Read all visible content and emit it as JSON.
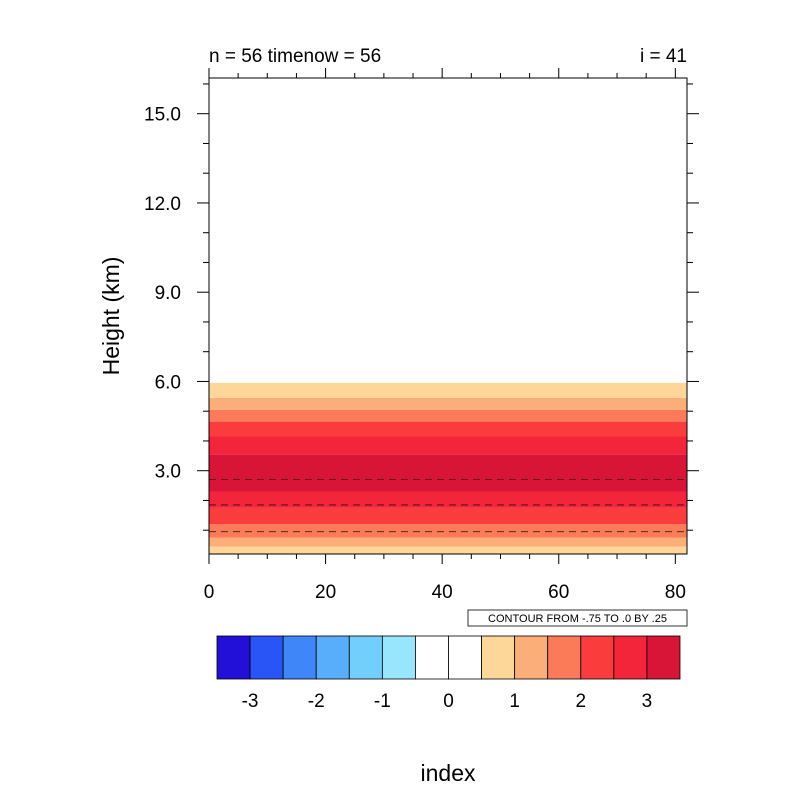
{
  "titles": {
    "left": "n = 56 timenow = 56",
    "right": "i = 41"
  },
  "contour_info": "CONTOUR FROM -.75 TO .0 BY .25",
  "chart_data": {
    "type": "heatmap",
    "ylabel": "Height (km)",
    "xlabel": "index",
    "xlim": [
      0,
      82
    ],
    "ylim": [
      0.2,
      16.2
    ],
    "x_ticks": [
      0,
      20,
      40,
      60,
      80
    ],
    "x_tick_labels": [
      "0",
      "20",
      "40",
      "60",
      "80"
    ],
    "y_ticks": [
      3,
      6,
      9,
      12,
      15
    ],
    "y_tick_labels": [
      "3.0",
      "6.0",
      "9.0",
      "12.0",
      "15.0"
    ],
    "filled_bands": [
      {
        "y0": 0.2,
        "y1": 0.45,
        "color": "#fdd79a"
      },
      {
        "y0": 0.45,
        "y1": 0.75,
        "color": "#fcae78"
      },
      {
        "y0": 0.75,
        "y1": 1.2,
        "color": "#fb7a58"
      },
      {
        "y0": 1.2,
        "y1": 1.75,
        "color": "#fb3c3c"
      },
      {
        "y0": 1.75,
        "y1": 2.3,
        "color": "#f3253a"
      },
      {
        "y0": 2.3,
        "y1": 3.55,
        "color": "#d81537"
      },
      {
        "y0": 3.55,
        "y1": 4.15,
        "color": "#f3253a"
      },
      {
        "y0": 4.15,
        "y1": 4.65,
        "color": "#fb3c3c"
      },
      {
        "y0": 4.65,
        "y1": 5.05,
        "color": "#fb7a58"
      },
      {
        "y0": 5.05,
        "y1": 5.45,
        "color": "#fcae78"
      },
      {
        "y0": 5.45,
        "y1": 5.95,
        "color": "#fdd79a"
      }
    ],
    "dashed_contours_y": [
      0.95,
      1.85,
      2.7
    ],
    "colorbar": {
      "colors": [
        "#2210d8",
        "#2a55f6",
        "#3f87f8",
        "#58aefa",
        "#72cffb",
        "#97e6fc",
        "#ffffff",
        "#ffffff",
        "#fdd79a",
        "#fcae78",
        "#fb7a58",
        "#fb3c3c",
        "#f3253a",
        "#d81537"
      ],
      "tick_labels": [
        "-3",
        "-2",
        "-1",
        "0",
        "1",
        "2",
        "3"
      ]
    }
  }
}
